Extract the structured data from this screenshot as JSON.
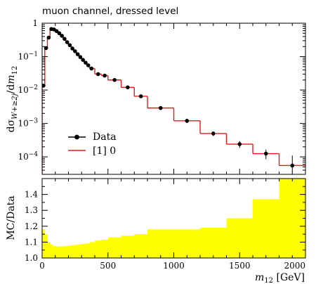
{
  "chart_data": [
    {
      "type": "line",
      "title": "muon channel, dressed level",
      "ylabel": "dσ_{W+≥2j}/dm_{12}",
      "xlim": [
        0,
        2000
      ],
      "ylim": [
        3e-05,
        1.0
      ],
      "yscale": "log",
      "y_ticks": [
        {
          "value": 1,
          "label": "1"
        },
        {
          "value": 0.1,
          "label": "10^{-1}"
        },
        {
          "value": 0.01,
          "label": "10^{-2}"
        },
        {
          "value": 0.001,
          "label": "10^{-3}"
        },
        {
          "value": 0.0001,
          "label": "10^{-4}"
        }
      ],
      "legend": {
        "placement": "bottom-left",
        "entries": [
          {
            "label": "Data",
            "color": "#000000",
            "marker": "circle"
          },
          {
            "label": "[1] 0",
            "color": "#e41a1c",
            "marker": "line"
          }
        ]
      },
      "series": [
        {
          "name": "Data",
          "color": "#000000",
          "points": [
            {
              "x": 10,
              "y": 0.0135,
              "ylo": 0.012,
              "yhi": 0.0152
            },
            {
              "x": 30,
              "y": 0.18,
              "ylo": 0.165,
              "yhi": 0.195
            },
            {
              "x": 50,
              "y": 0.37,
              "ylo": 0.35,
              "yhi": 0.39
            },
            {
              "x": 70,
              "y": 0.67,
              "ylo": 0.64,
              "yhi": 0.7
            },
            {
              "x": 90,
              "y": 0.65,
              "ylo": 0.62,
              "yhi": 0.68
            },
            {
              "x": 110,
              "y": 0.58,
              "ylo": 0.55,
              "yhi": 0.61
            },
            {
              "x": 130,
              "y": 0.5,
              "ylo": 0.475,
              "yhi": 0.525
            },
            {
              "x": 150,
              "y": 0.42,
              "ylo": 0.4,
              "yhi": 0.44
            },
            {
              "x": 170,
              "y": 0.34,
              "ylo": 0.325,
              "yhi": 0.355
            },
            {
              "x": 190,
              "y": 0.27,
              "ylo": 0.257,
              "yhi": 0.283
            },
            {
              "x": 210,
              "y": 0.22,
              "ylo": 0.21,
              "yhi": 0.23
            },
            {
              "x": 230,
              "y": 0.175,
              "ylo": 0.167,
              "yhi": 0.183
            },
            {
              "x": 250,
              "y": 0.145,
              "ylo": 0.138,
              "yhi": 0.152
            },
            {
              "x": 270,
              "y": 0.118,
              "ylo": 0.112,
              "yhi": 0.124
            },
            {
              "x": 290,
              "y": 0.097,
              "ylo": 0.092,
              "yhi": 0.102
            },
            {
              "x": 310,
              "y": 0.08,
              "ylo": 0.076,
              "yhi": 0.084
            },
            {
              "x": 330,
              "y": 0.066,
              "ylo": 0.0625,
              "yhi": 0.0695
            },
            {
              "x": 350,
              "y": 0.055,
              "ylo": 0.052,
              "yhi": 0.058
            },
            {
              "x": 375,
              "y": 0.044,
              "ylo": 0.0415,
              "yhi": 0.0465
            },
            {
              "x": 425,
              "y": 0.03,
              "ylo": 0.0283,
              "yhi": 0.0317
            },
            {
              "x": 475,
              "y": 0.027,
              "ylo": 0.0254,
              "yhi": 0.0286
            },
            {
              "x": 550,
              "y": 0.02,
              "ylo": 0.0188,
              "yhi": 0.0212
            },
            {
              "x": 650,
              "y": 0.012,
              "ylo": 0.0112,
              "yhi": 0.0128
            },
            {
              "x": 750,
              "y": 0.0065,
              "ylo": 0.0058,
              "yhi": 0.0072
            },
            {
              "x": 900,
              "y": 0.0029,
              "ylo": 0.0025,
              "yhi": 0.0033
            },
            {
              "x": 1100,
              "y": 0.0012,
              "ylo": 0.00103,
              "yhi": 0.00137
            },
            {
              "x": 1300,
              "y": 0.0005,
              "ylo": 0.00042,
              "yhi": 0.00058
            },
            {
              "x": 1500,
              "y": 0.00024,
              "ylo": 0.000185,
              "yhi": 0.000295
            },
            {
              "x": 1700,
              "y": 0.000125,
              "ylo": 8.5e-05,
              "yhi": 0.000165
            },
            {
              "x": 1900,
              "y": 5.5e-05,
              "ylo": 3.5e-05,
              "yhi": 0.00011
            }
          ]
        },
        {
          "name": "[1] 0",
          "color": "#e41a1c",
          "bins": [
            {
              "x0": 0,
              "x1": 20,
              "y": 0.0135
            },
            {
              "x0": 20,
              "x1": 40,
              "y": 0.18
            },
            {
              "x0": 40,
              "x1": 60,
              "y": 0.37
            },
            {
              "x0": 60,
              "x1": 80,
              "y": 0.67
            },
            {
              "x0": 80,
              "x1": 100,
              "y": 0.65
            },
            {
              "x0": 100,
              "x1": 120,
              "y": 0.58
            },
            {
              "x0": 120,
              "x1": 140,
              "y": 0.5
            },
            {
              "x0": 140,
              "x1": 160,
              "y": 0.42
            },
            {
              "x0": 160,
              "x1": 180,
              "y": 0.34
            },
            {
              "x0": 180,
              "x1": 200,
              "y": 0.27
            },
            {
              "x0": 200,
              "x1": 220,
              "y": 0.22
            },
            {
              "x0": 220,
              "x1": 240,
              "y": 0.175
            },
            {
              "x0": 240,
              "x1": 260,
              "y": 0.145
            },
            {
              "x0": 260,
              "x1": 280,
              "y": 0.118
            },
            {
              "x0": 280,
              "x1": 300,
              "y": 0.097
            },
            {
              "x0": 300,
              "x1": 320,
              "y": 0.08
            },
            {
              "x0": 320,
              "x1": 340,
              "y": 0.066
            },
            {
              "x0": 340,
              "x1": 360,
              "y": 0.055
            },
            {
              "x0": 360,
              "x1": 400,
              "y": 0.044
            },
            {
              "x0": 400,
              "x1": 450,
              "y": 0.03
            },
            {
              "x0": 450,
              "x1": 500,
              "y": 0.027
            },
            {
              "x0": 500,
              "x1": 600,
              "y": 0.02
            },
            {
              "x0": 600,
              "x1": 700,
              "y": 0.012
            },
            {
              "x0": 700,
              "x1": 800,
              "y": 0.0065
            },
            {
              "x0": 800,
              "x1": 1000,
              "y": 0.0029
            },
            {
              "x0": 1000,
              "x1": 1200,
              "y": 0.0012
            },
            {
              "x0": 1200,
              "x1": 1400,
              "y": 0.0005
            },
            {
              "x0": 1400,
              "x1": 1600,
              "y": 0.00024
            },
            {
              "x0": 1600,
              "x1": 1800,
              "y": 0.000125
            },
            {
              "x0": 1800,
              "x1": 2000,
              "y": 5.5e-05
            }
          ]
        }
      ]
    },
    {
      "type": "area",
      "ylabel": "MC/Data",
      "xlabel": "m_{12} [GeV]",
      "xlim": [
        0,
        2000
      ],
      "ylim": [
        1.0,
        1.5
      ],
      "x_ticks": [
        0,
        500,
        1000,
        1500,
        2000
      ],
      "y_ticks": [
        1.0,
        1.1,
        1.2,
        1.3,
        1.4
      ],
      "y_tick_labels": [
        "1.0",
        "1.1",
        "1.2",
        "1.3",
        "1.4"
      ],
      "reference_line": 1.0,
      "band_color": "#ffff00",
      "band": [
        {
          "x0": 0,
          "x1": 20,
          "hi": 1.18
        },
        {
          "x0": 20,
          "x1": 40,
          "hi": 1.15
        },
        {
          "x0": 40,
          "x1": 60,
          "hi": 1.1
        },
        {
          "x0": 60,
          "x1": 80,
          "hi": 1.085
        },
        {
          "x0": 80,
          "x1": 100,
          "hi": 1.075
        },
        {
          "x0": 100,
          "x1": 120,
          "hi": 1.072
        },
        {
          "x0": 120,
          "x1": 140,
          "hi": 1.072
        },
        {
          "x0": 140,
          "x1": 160,
          "hi": 1.073
        },
        {
          "x0": 160,
          "x1": 180,
          "hi": 1.074
        },
        {
          "x0": 180,
          "x1": 200,
          "hi": 1.076
        },
        {
          "x0": 200,
          "x1": 220,
          "hi": 1.078
        },
        {
          "x0": 220,
          "x1": 240,
          "hi": 1.08
        },
        {
          "x0": 240,
          "x1": 260,
          "hi": 1.082
        },
        {
          "x0": 260,
          "x1": 280,
          "hi": 1.084
        },
        {
          "x0": 280,
          "x1": 300,
          "hi": 1.086
        },
        {
          "x0": 300,
          "x1": 320,
          "hi": 1.088
        },
        {
          "x0": 320,
          "x1": 340,
          "hi": 1.09
        },
        {
          "x0": 340,
          "x1": 360,
          "hi": 1.092
        },
        {
          "x0": 360,
          "x1": 400,
          "hi": 1.1
        },
        {
          "x0": 400,
          "x1": 450,
          "hi": 1.11
        },
        {
          "x0": 450,
          "x1": 500,
          "hi": 1.115
        },
        {
          "x0": 500,
          "x1": 600,
          "hi": 1.13
        },
        {
          "x0": 600,
          "x1": 700,
          "hi": 1.14
        },
        {
          "x0": 700,
          "x1": 800,
          "hi": 1.15
        },
        {
          "x0": 800,
          "x1": 1000,
          "hi": 1.18
        },
        {
          "x0": 1000,
          "x1": 1200,
          "hi": 1.18
        },
        {
          "x0": 1200,
          "x1": 1400,
          "hi": 1.19
        },
        {
          "x0": 1400,
          "x1": 1600,
          "hi": 1.25
        },
        {
          "x0": 1600,
          "x1": 1800,
          "hi": 1.37
        },
        {
          "x0": 1800,
          "x1": 2000,
          "hi": 1.5
        }
      ]
    }
  ]
}
